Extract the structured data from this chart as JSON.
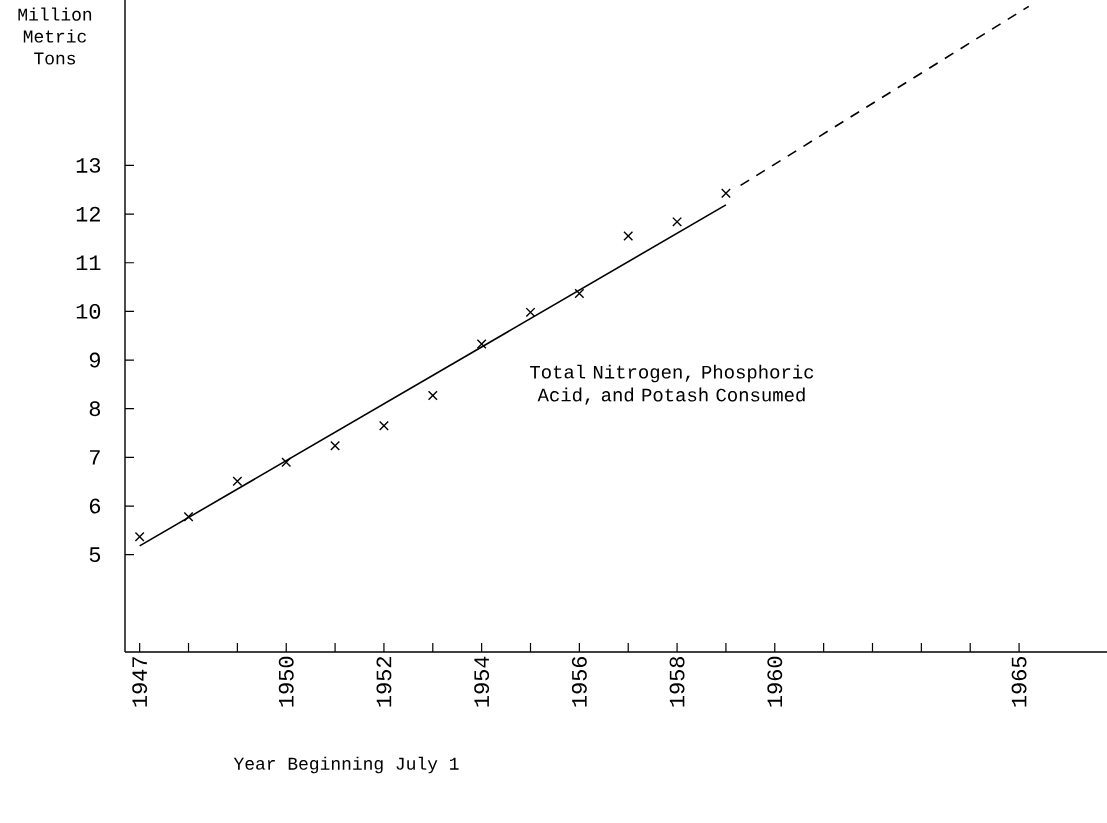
{
  "chart_data": {
    "type": "scatter",
    "xlabel": "Year Beginning July 1",
    "ylabel": "Million Metric Tons",
    "xlim": [
      1946.7,
      1966.8
    ],
    "ylim": [
      3.0,
      16.4
    ],
    "xticks": [
      1947,
      {
        "value": 1948,
        "label": null
      },
      {
        "value": 1949,
        "label": null
      },
      1950,
      {
        "value": 1951,
        "label": null
      },
      1952,
      {
        "value": 1953,
        "label": null
      },
      1954,
      {
        "value": 1955,
        "label": null
      },
      1956,
      {
        "value": 1957,
        "label": null
      },
      1958,
      {
        "value": 1959,
        "label": null
      },
      1960,
      {
        "value": 1961,
        "label": null
      },
      {
        "value": 1962,
        "label": null
      },
      {
        "value": 1963,
        "label": null
      },
      {
        "value": 1964,
        "label": null
      },
      1965
    ],
    "yticks": [
      5,
      6,
      7,
      8,
      9,
      10,
      11,
      12,
      13
    ],
    "grid": false,
    "legend": false,
    "series": [
      {
        "name": "Total Nitrogen, Phosphoric Acid, and Potash Consumed",
        "marker": "cross",
        "color": "#000000",
        "x": [
          1947,
          1948,
          1949,
          1950,
          1951,
          1952,
          1953,
          1954,
          1955,
          1956,
          1957,
          1958,
          1959
        ],
        "values": [
          5.37,
          5.78,
          6.51,
          6.9,
          7.24,
          7.65,
          8.27,
          9.33,
          9.98,
          10.37,
          11.55,
          11.84,
          12.43
        ]
      },
      {
        "type": "line",
        "marker": "none",
        "line_style": "solid",
        "color": "#000000",
        "x": [
          1947,
          1959
        ],
        "values": [
          5.18,
          12.19
        ]
      },
      {
        "type": "line",
        "marker": "none",
        "line_style": "dashed",
        "color": "#000000",
        "x": [
          1959.3,
          1965.2
        ],
        "values": [
          12.59,
          16.27
        ]
      }
    ]
  }
}
